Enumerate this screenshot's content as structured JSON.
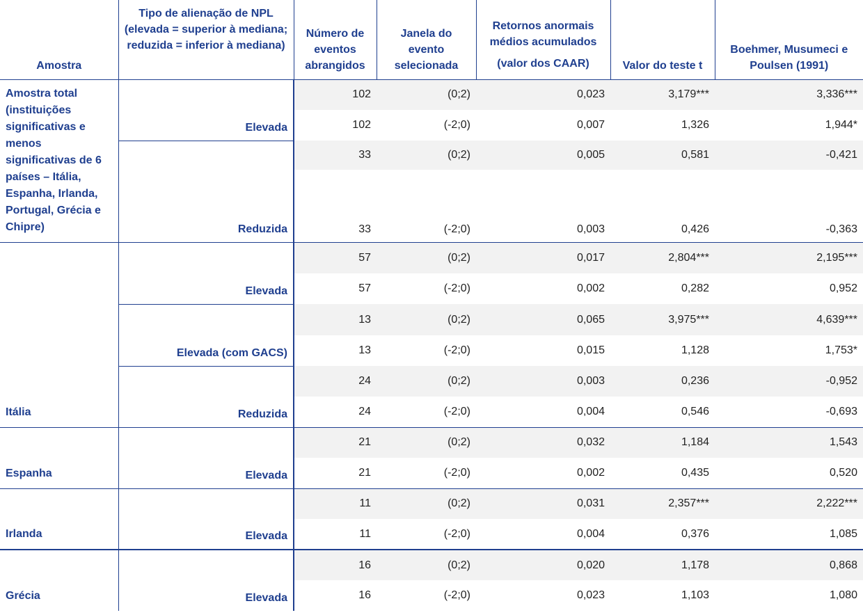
{
  "header": {
    "amostra": "Amostra",
    "tipo": "Tipo de alienação de NPL (elevada = superior à mediana; reduzida = inferior à mediana)",
    "numero": "Número de eventos abrangidos",
    "janela": "Janela do evento selecionada",
    "retornos": "Retornos anormais médios acumulados",
    "retornos_sub": "(valor dos CAAR)",
    "teste_t": "Valor do teste t",
    "boehmer": "Boehmer, Musumeci e Poulsen (1991)"
  },
  "groups": {
    "total": "Amostra total (instituições significativas e menos significativas de 6 países – Itália, Espanha, Irlanda, Portugal, Grécia e Chipre)",
    "italia": "Itália",
    "espanha": "Espanha",
    "irlanda": "Irlanda",
    "grecia": "Grécia"
  },
  "types": {
    "t1": "Elevada",
    "t2": "Reduzida",
    "t3": "Elevada",
    "t4": "Elevada (com GACS)",
    "t5": "Reduzida",
    "t6": "Elevada",
    "t7": "Elevada",
    "t8": "Elevada"
  },
  "rows": [
    {
      "n": "102",
      "j": "(0;2)",
      "c": "0,023",
      "t": "3,179***",
      "b": "3,336***"
    },
    {
      "n": "102",
      "j": "(-2;0)",
      "c": "0,007",
      "t": "1,326",
      "b": "1,944*"
    },
    {
      "n": "33",
      "j": "(0;2)",
      "c": "0,005",
      "t": "0,581",
      "b": "-0,421"
    },
    {
      "n": "33",
      "j": "(-2;0)",
      "c": "0,003",
      "t": "0,426",
      "b": "-0,363"
    },
    {
      "n": "57",
      "j": "(0;2)",
      "c": "0,017",
      "t": "2,804***",
      "b": "2,195***"
    },
    {
      "n": "57",
      "j": "(-2;0)",
      "c": "0,002",
      "t": "0,282",
      "b": "0,952"
    },
    {
      "n": "13",
      "j": "(0;2)",
      "c": "0,065",
      "t": "3,975***",
      "b": "4,639***"
    },
    {
      "n": "13",
      "j": "(-2;0)",
      "c": "0,015",
      "t": "1,128",
      "b": "1,753*"
    },
    {
      "n": "24",
      "j": "(0;2)",
      "c": "0,003",
      "t": "0,236",
      "b": "-0,952"
    },
    {
      "n": "24",
      "j": "(-2;0)",
      "c": "0,004",
      "t": "0,546",
      "b": "-0,693"
    },
    {
      "n": "21",
      "j": "(0;2)",
      "c": "0,032",
      "t": "1,184",
      "b": "1,543"
    },
    {
      "n": "21",
      "j": "(-2;0)",
      "c": "0,002",
      "t": "0,435",
      "b": "0,520"
    },
    {
      "n": "11",
      "j": "(0;2)",
      "c": "0,031",
      "t": "2,357***",
      "b": "2,222***"
    },
    {
      "n": "11",
      "j": "(-2;0)",
      "c": "0,004",
      "t": "0,376",
      "b": "1,085"
    },
    {
      "n": "16",
      "j": "(0;2)",
      "c": "0,020",
      "t": "1,178",
      "b": "0,868"
    },
    {
      "n": "16",
      "j": "(-2;0)",
      "c": "0,023",
      "t": "1,103",
      "b": "1,080"
    }
  ]
}
